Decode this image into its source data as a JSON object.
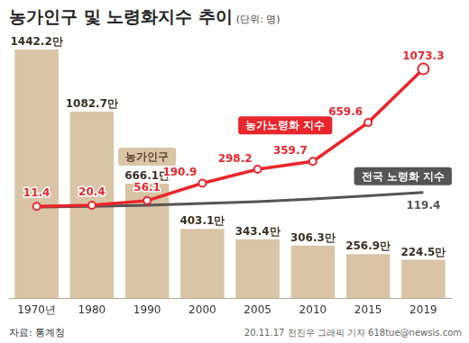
{
  "chart_data": {
    "type": "bar",
    "title": "농가인구 및 노령화지수 추이",
    "subtitle": "(단위: 명)",
    "categories": [
      "1970년",
      "1980",
      "1990",
      "2000",
      "2005",
      "2010",
      "2015",
      "2019"
    ],
    "series": [
      {
        "name": "농가인구",
        "type": "bar",
        "color": "#d9c4a6",
        "values": [
          1442.2,
          1082.7,
          666.1,
          403.1,
          343.4,
          306.3,
          256.9,
          224.5
        ],
        "value_labels": [
          "1442.2만",
          "1082.7만",
          "666.1만",
          "403.1만",
          "343.4만",
          "306.3만",
          "256.9만",
          "224.5만"
        ]
      },
      {
        "name": "농가노령화 지수",
        "type": "line",
        "axis": "y2",
        "color": "#e8262b",
        "marker": "circle",
        "values": [
          11.4,
          20.4,
          56.1,
          190.9,
          298.2,
          359.7,
          659.6,
          1073.3
        ]
      },
      {
        "name": "전국 노령화 지수",
        "type": "line",
        "axis": "y2",
        "color": "#555555",
        "marker": "none",
        "values": [
          7.2,
          11.2,
          20.0,
          34.3,
          48.6,
          68.4,
          94.1,
          119.4
        ],
        "value_labels": [
          null,
          null,
          null,
          null,
          null,
          null,
          null,
          "119.4"
        ]
      }
    ],
    "ylim": [
      0,
      1500
    ],
    "y2lim": [
      -700,
      1300
    ],
    "grid": false,
    "data_labels": true,
    "tick_labels": "x",
    "annotations": [
      "자료: 통계청",
      "20.11.17 전진우 그래픽 기자 618tue@newsis.com"
    ]
  }
}
